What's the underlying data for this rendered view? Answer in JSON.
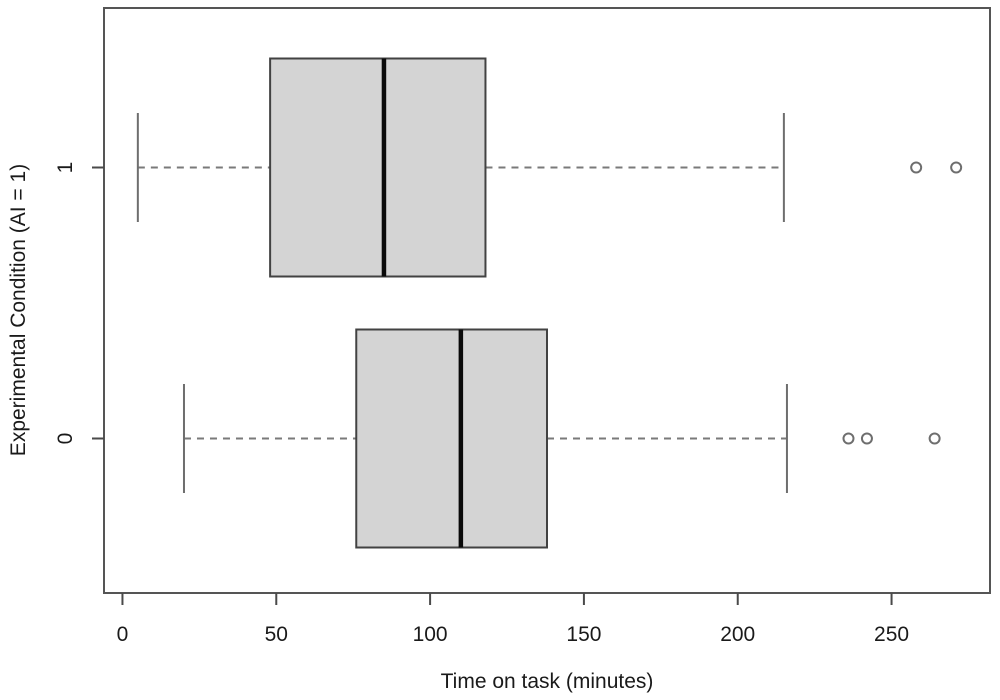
{
  "figure": {
    "background": "#ffffff"
  },
  "chart_data": {
    "type": "boxplot",
    "orientation": "horizontal",
    "title": "",
    "xlabel": "Time on task (minutes)",
    "ylabel": "Experimental Condition (AI = 1)",
    "axes": {
      "xlim": [
        -6,
        282
      ],
      "x_ticks": [
        0,
        50,
        100,
        150,
        200,
        250
      ],
      "x_tick_labels": [
        "0",
        "50",
        "100",
        "150",
        "200",
        "250"
      ],
      "y_categories": [
        "0",
        "1"
      ],
      "grid": false,
      "frame": true,
      "legend": "none"
    },
    "groups": [
      {
        "label": "0",
        "whisker_low": 20,
        "q1": 76,
        "median": 110,
        "q3": 138,
        "whisker_high": 216,
        "outliers": [
          236,
          242,
          264
        ]
      },
      {
        "label": "1",
        "whisker_low": 5,
        "q1": 48,
        "median": 85,
        "q3": 118,
        "whisker_high": 215,
        "outliers": [
          258,
          271
        ]
      }
    ],
    "style": {
      "box_fill": "#d4d4d4",
      "box_border": "#424242",
      "median_color": "#0a0a0a",
      "whisker_color": "#7a7a7a",
      "staple_color": "#6e6e6e",
      "outlier_color": "#6e6e6e",
      "frame_color": "#555555",
      "tick_color": "#4a4a4a",
      "text_color": "#1a1a1a"
    }
  }
}
